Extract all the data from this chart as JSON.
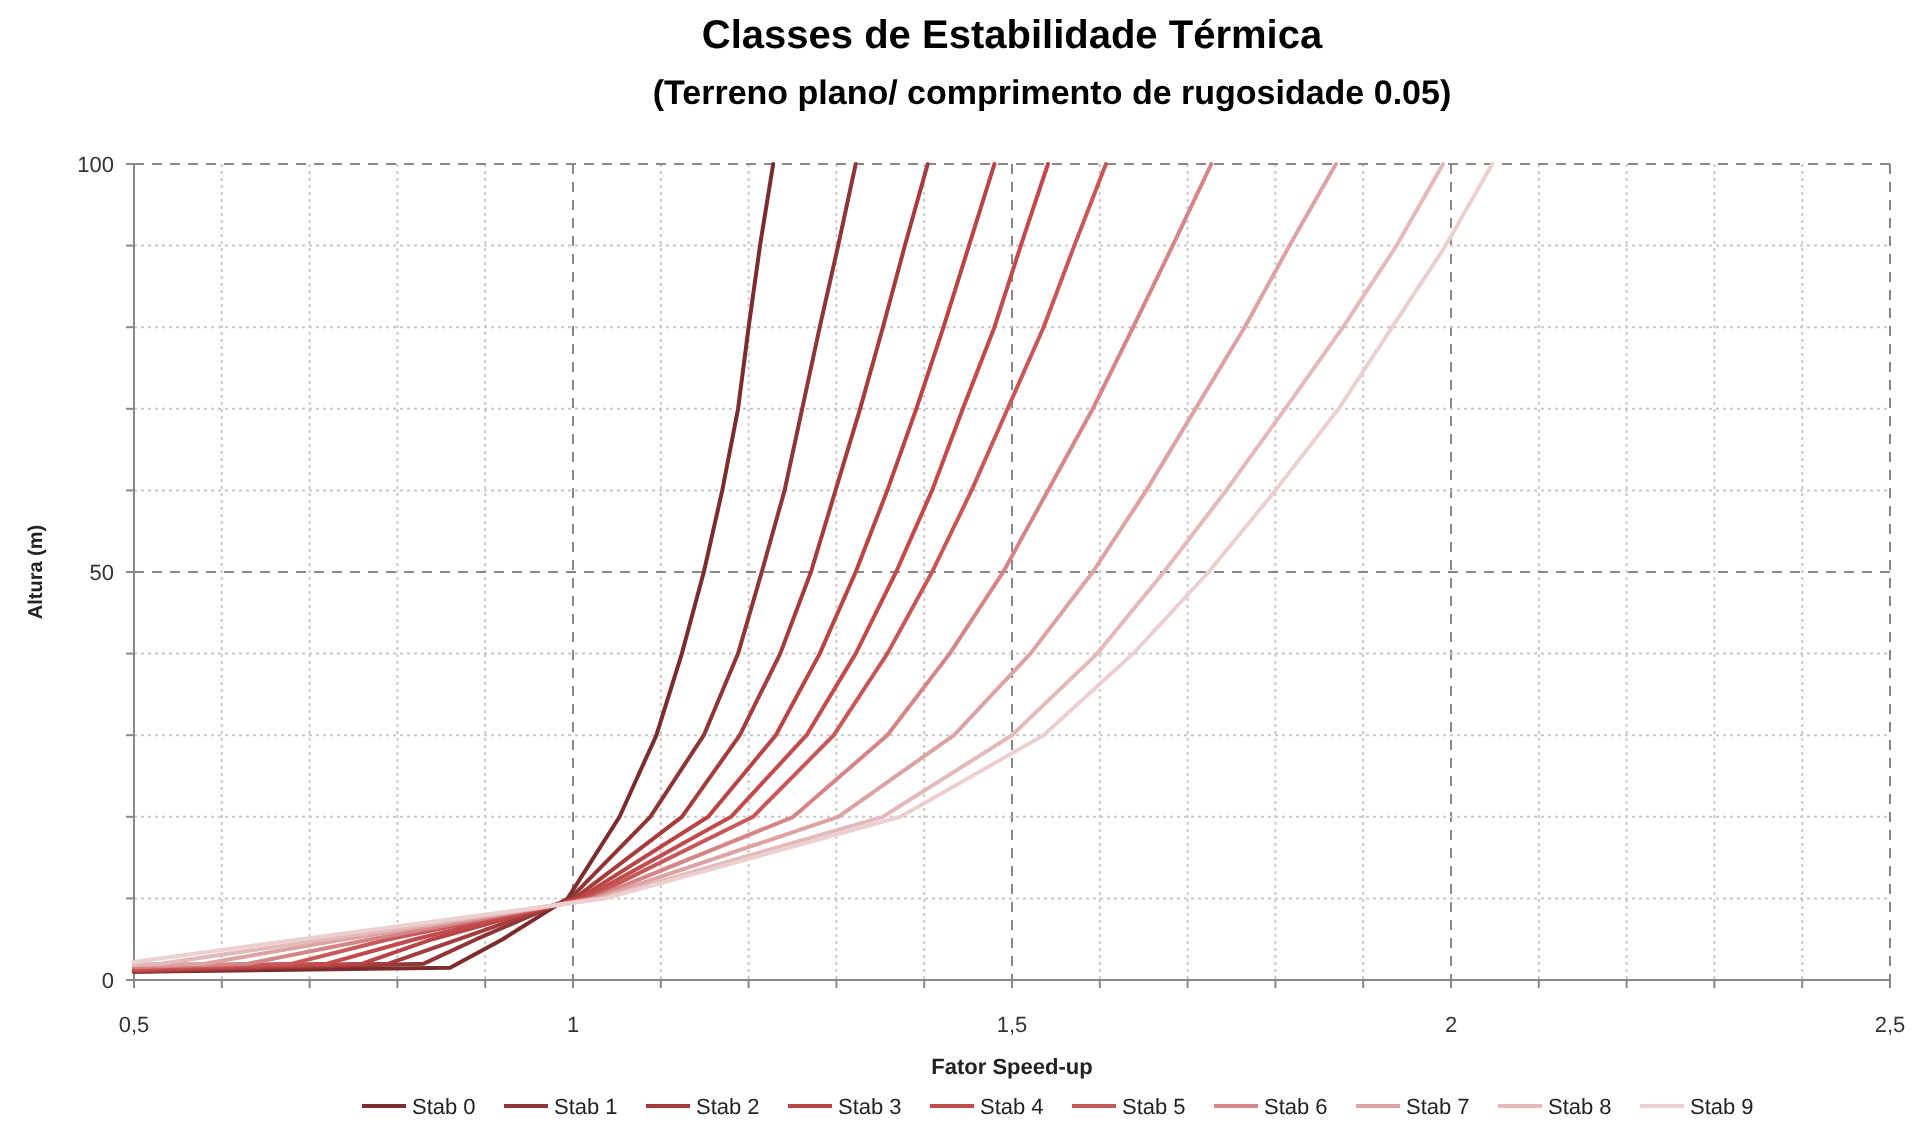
{
  "chart_data": {
    "type": "line",
    "title": "Classes de Estabilidade Térmica",
    "subtitle": "(Terreno plano/ comprimento de rugosidade 0.05)",
    "xlabel": "Fator Speed-up",
    "ylabel": "Altura (m)",
    "xlim": [
      0.5,
      2.5
    ],
    "ylim": [
      0,
      100
    ],
    "xticks": [
      {
        "value": 0.5,
        "label": "0,5"
      },
      {
        "value": 0.6,
        "label": null
      },
      {
        "value": 0.7,
        "label": null
      },
      {
        "value": 0.8,
        "label": null
      },
      {
        "value": 0.9,
        "label": null
      },
      1,
      {
        "value": 1.1,
        "label": null
      },
      {
        "value": 1.2,
        "label": null
      },
      {
        "value": 1.3,
        "label": null
      },
      {
        "value": 1.4,
        "label": null
      },
      {
        "value": 1.5,
        "label": "1,5"
      },
      {
        "value": 1.6,
        "label": null
      },
      {
        "value": 1.7,
        "label": null
      },
      {
        "value": 1.8,
        "label": null
      },
      {
        "value": 1.9,
        "label": null
      },
      2,
      {
        "value": 2.1,
        "label": null
      },
      {
        "value": 2.2,
        "label": null
      },
      {
        "value": 2.3,
        "label": null
      },
      {
        "value": 2.4,
        "label": null
      },
      {
        "value": 2.5,
        "label": "2,5"
      }
    ],
    "yticks": [
      0,
      {
        "value": 10,
        "label": null
      },
      {
        "value": 20,
        "label": null
      },
      {
        "value": 30,
        "label": null
      },
      {
        "value": 40,
        "label": null
      },
      50,
      {
        "value": 60,
        "label": null
      },
      {
        "value": 70,
        "label": null
      },
      {
        "value": 80,
        "label": null
      },
      {
        "value": 90,
        "label": null
      },
      100
    ],
    "grid": true,
    "legend": "bottom",
    "line_style": "solid",
    "series": [
      {
        "name": "Stab 0",
        "color": "#7b2c2c",
        "x": [
          0.5,
          0.86,
          0.92,
          0.994,
          1.053,
          1.095,
          1.124,
          1.149,
          1.17,
          1.188,
          1.2,
          1.213,
          1.228
        ],
        "values": [
          1.0,
          1.5,
          5,
          10,
          20,
          30,
          40,
          50,
          60,
          70,
          80,
          90,
          100
        ]
      },
      {
        "name": "Stab 1",
        "color": "#8e3535",
        "x": [
          0.5,
          0.83,
          0.89,
          0.997,
          1.088,
          1.149,
          1.188,
          1.215,
          1.241,
          1.261,
          1.281,
          1.302,
          1.322
        ],
        "values": [
          1.0,
          2,
          5,
          10,
          20,
          30,
          40,
          50,
          60,
          70,
          80,
          90,
          100
        ]
      },
      {
        "name": "Stab 2",
        "color": "#a43c3c",
        "x": [
          0.5,
          0.79,
          0.87,
          1.002,
          1.124,
          1.19,
          1.236,
          1.271,
          1.299,
          1.327,
          1.353,
          1.378,
          1.404
        ],
        "values": [
          1.1,
          2,
          5,
          10,
          20,
          30,
          40,
          50,
          60,
          70,
          80,
          90,
          100
        ]
      },
      {
        "name": "Stab 3",
        "color": "#b84444",
        "x": [
          0.5,
          0.76,
          0.84,
          1.007,
          1.154,
          1.231,
          1.281,
          1.322,
          1.358,
          1.391,
          1.422,
          1.451,
          1.48
        ],
        "values": [
          1.2,
          2,
          5,
          10,
          20,
          30,
          40,
          50,
          60,
          70,
          80,
          90,
          100
        ]
      },
      {
        "name": "Stab 4",
        "color": "#c24a4a",
        "x": [
          0.5,
          0.72,
          0.82,
          1.012,
          1.18,
          1.266,
          1.322,
          1.368,
          1.409,
          1.444,
          1.48,
          1.51,
          1.541
        ],
        "values": [
          1.3,
          2,
          5,
          10,
          20,
          30,
          40,
          50,
          60,
          70,
          80,
          90,
          100
        ]
      },
      {
        "name": "Stab 5",
        "color": "#c85757",
        "x": [
          0.5,
          0.68,
          0.79,
          1.017,
          1.205,
          1.297,
          1.358,
          1.409,
          1.454,
          1.495,
          1.536,
          1.571,
          1.607
        ],
        "values": [
          1.4,
          2,
          5,
          10,
          20,
          30,
          40,
          50,
          60,
          70,
          80,
          90,
          100
        ]
      },
      {
        "name": "Stab 6",
        "color": "#d58585",
        "x": [
          0.5,
          0.63,
          0.77,
          1.022,
          1.251,
          1.358,
          1.429,
          1.49,
          1.541,
          1.592,
          1.638,
          1.683,
          1.727
        ],
        "values": [
          1.6,
          2,
          5,
          10,
          20,
          30,
          40,
          50,
          60,
          70,
          80,
          90,
          100
        ]
      },
      {
        "name": "Stab 7",
        "color": "#dda2a2",
        "x": [
          0.5,
          0.58,
          0.74,
          1.027,
          1.302,
          1.434,
          1.521,
          1.592,
          1.653,
          1.709,
          1.765,
          1.816,
          1.869
        ],
        "values": [
          1.8,
          2,
          5,
          10,
          20,
          30,
          40,
          50,
          60,
          70,
          80,
          90,
          100
        ]
      },
      {
        "name": "Stab 8",
        "color": "#e4b9b9",
        "x": [
          0.5,
          0.53,
          0.72,
          1.032,
          1.353,
          1.5,
          1.597,
          1.673,
          1.744,
          1.811,
          1.877,
          1.938,
          1.991
        ],
        "values": [
          1.9,
          2,
          5,
          10,
          20,
          30,
          40,
          50,
          60,
          70,
          80,
          90,
          100
        ]
      },
      {
        "name": "Stab 9",
        "color": "#ecd0d0",
        "x": [
          0.5,
          0.69,
          1.037,
          1.373,
          1.536,
          1.638,
          1.724,
          1.8,
          1.872,
          1.933,
          1.994,
          2.047
        ],
        "values": [
          2.2,
          5,
          10,
          20,
          30,
          40,
          50,
          60,
          70,
          80,
          90,
          100
        ]
      }
    ]
  }
}
